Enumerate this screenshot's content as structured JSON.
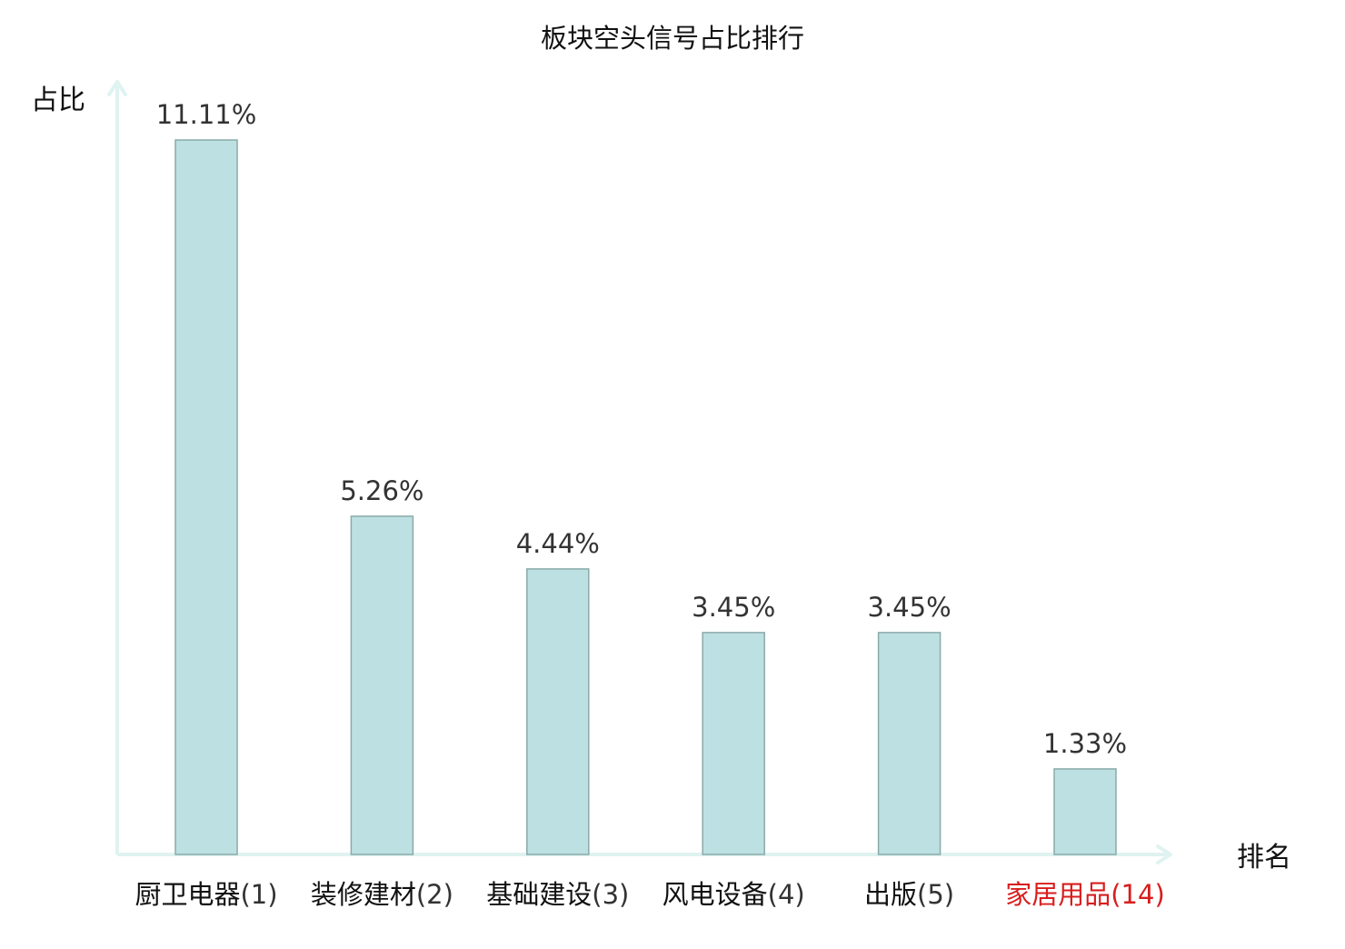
{
  "chart_data": {
    "type": "bar",
    "title": "板块空头信号占比排行",
    "ylabel": "占比",
    "xlabel": "排名",
    "ylim": [
      0,
      12
    ],
    "grid": false,
    "legend": "none",
    "categories": [
      {
        "name": "厨卫电器",
        "rank": "(1)",
        "highlight": false
      },
      {
        "name": "装修建材",
        "rank": "(2)",
        "highlight": false
      },
      {
        "name": "基础建设",
        "rank": "(3)",
        "highlight": false
      },
      {
        "name": "风电设备",
        "rank": "(4)",
        "highlight": false
      },
      {
        "name": "出版",
        "rank": "(5)",
        "highlight": false
      },
      {
        "name": "家居用品",
        "rank": "(14)",
        "highlight": true
      }
    ],
    "values": [
      11.11,
      5.26,
      4.44,
      3.45,
      3.45,
      1.33
    ],
    "value_labels": [
      "11.11%",
      "5.26%",
      "4.44%",
      "3.45%",
      "3.45%",
      "1.33%"
    ],
    "colors": {
      "bar_fill": "#bde0e3",
      "bar_stroke": "#8aaaaa",
      "axis": "#dff3f0",
      "text": "#333333",
      "highlight_text": "#d81e1e"
    }
  }
}
